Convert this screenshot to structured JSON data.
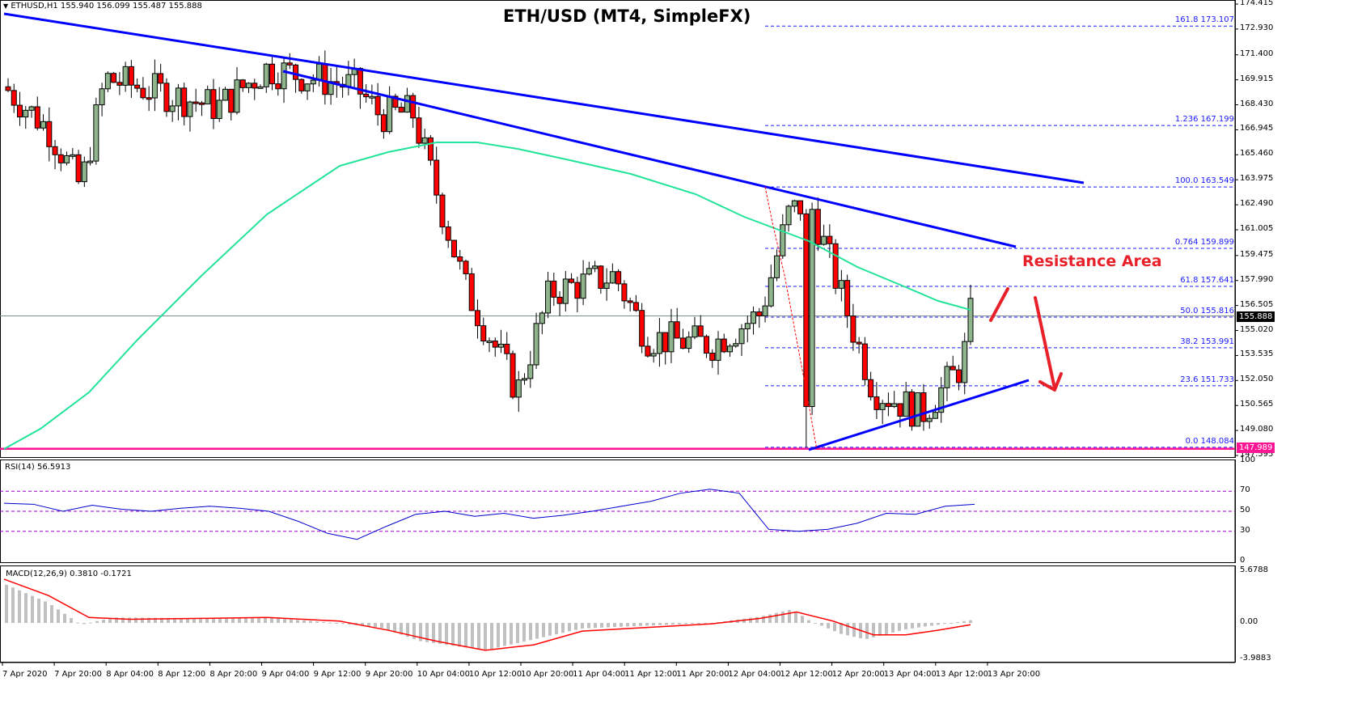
{
  "window": {
    "symbol_info": "ETHUSD,H1  155.940 156.099 155.487 155.888",
    "title": "ETH/USD (MT4, SimpleFX)"
  },
  "annotations": {
    "resistance_label": "Resistance Area"
  },
  "colors": {
    "bull_candle": "#8fb58c",
    "bear_candle": "#ff0000",
    "trendline": "#0000ff",
    "ma": "#22e39a",
    "support_line": "#ff1493",
    "fib": "#1a1aff",
    "rsi_line": "#0000cc",
    "rsi_levels": "#9900cc",
    "macd_hist": "#c0c0c0",
    "macd_signal": "#ff0000",
    "arrow": "#e8202a"
  },
  "price_axis": {
    "ticks": [
      "174.415",
      "172.930",
      "171.400",
      "169.915",
      "168.430",
      "166.945",
      "165.460",
      "163.975",
      "162.490",
      "161.005",
      "159.475",
      "157.990",
      "156.505",
      "155.020",
      "153.535",
      "152.050",
      "150.565",
      "149.080",
      "147.595"
    ],
    "current_price": "155.888",
    "support_price": "147.989"
  },
  "fibonacci": [
    {
      "level": "161.8",
      "price": "173.107"
    },
    {
      "level": "1.236",
      "price": "167.199"
    },
    {
      "level": "100.0",
      "price": "163.549"
    },
    {
      "level": "0.764",
      "price": "159.899"
    },
    {
      "level": "61.8",
      "price": "157.641"
    },
    {
      "level": "50.0",
      "price": "155.816"
    },
    {
      "level": "38.2",
      "price": "153.991"
    },
    {
      "level": "23.6",
      "price": "151.733"
    },
    {
      "level": "0.0",
      "price": "148.084"
    }
  ],
  "rsi": {
    "label": "RSI(14) 56.5913",
    "ticks": [
      "100",
      "70",
      "50",
      "30",
      "0"
    ]
  },
  "macd": {
    "label": "MACD(12,26,9) 0.3810 -0.1721",
    "ticks": [
      "5.6788",
      "0.00",
      "-3.9883"
    ]
  },
  "time_axis": {
    "labels": [
      "7 Apr 2020",
      "7 Apr 20:00",
      "8 Apr 04:00",
      "8 Apr 12:00",
      "8 Apr 20:00",
      "9 Apr 04:00",
      "9 Apr 12:00",
      "9 Apr 20:00",
      "10 Apr 04:00",
      "10 Apr 12:00",
      "10 Apr 20:00",
      "11 Apr 04:00",
      "11 Apr 12:00",
      "11 Apr 20:00",
      "12 Apr 04:00",
      "12 Apr 12:00",
      "12 Apr 20:00",
      "13 Apr 04:00",
      "13 Apr 12:00",
      "13 Apr 20:00"
    ]
  },
  "chart_data": {
    "type": "candlestick",
    "title": "ETH/USD (MT4, SimpleFX)",
    "symbol": "ETHUSD",
    "timeframe": "H1",
    "last_bar": {
      "open": 155.94,
      "high": 156.099,
      "low": 155.487,
      "close": 155.888
    },
    "xlabel": "",
    "ylabel": "",
    "ylim": [
      147.595,
      174.415
    ],
    "x_tick_labels": [
      "7 Apr 2020",
      "7 Apr 20:00",
      "8 Apr 04:00",
      "8 Apr 12:00",
      "8 Apr 20:00",
      "9 Apr 04:00",
      "9 Apr 12:00",
      "9 Apr 20:00",
      "10 Apr 04:00",
      "10 Apr 12:00",
      "10 Apr 20:00",
      "11 Apr 04:00",
      "11 Apr 12:00",
      "11 Apr 20:00",
      "12 Apr 04:00",
      "12 Apr 12:00",
      "12 Apr 20:00",
      "13 Apr 04:00",
      "13 Apr 12:00",
      "13 Apr 20:00"
    ],
    "approx_close_path": [
      {
        "t": "7 Apr 00:00",
        "close": 169.3
      },
      {
        "t": "7 Apr 12:00",
        "close": 167.0
      },
      {
        "t": "7 Apr 20:00",
        "close": 163.5
      },
      {
        "t": "8 Apr 04:00",
        "close": 170.0
      },
      {
        "t": "8 Apr 12:00",
        "close": 168.3
      },
      {
        "t": "8 Apr 20:00",
        "close": 170.6
      },
      {
        "t": "9 Apr 04:00",
        "close": 169.5
      },
      {
        "t": "9 Apr 12:00",
        "close": 167.8
      },
      {
        "t": "9 Apr 20:00",
        "close": 168.0
      },
      {
        "t": "10 Apr 04:00",
        "close": 157.6
      },
      {
        "t": "10 Apr 12:00",
        "close": 151.4
      },
      {
        "t": "10 Apr 20:00",
        "close": 157.3
      },
      {
        "t": "11 Apr 04:00",
        "close": 158.3
      },
      {
        "t": "11 Apr 12:00",
        "close": 154.6
      },
      {
        "t": "11 Apr 20:00",
        "close": 154.2
      },
      {
        "t": "12 Apr 04:00",
        "close": 156.0
      },
      {
        "t": "12 Apr 12:00",
        "close": 161.9
      },
      {
        "t": "12 Apr 16:00",
        "close": 162.8
      },
      {
        "t": "12 Apr 20:00",
        "close": 151.5
      },
      {
        "t": "13 Apr 04:00",
        "close": 150.1
      },
      {
        "t": "13 Apr 12:00",
        "close": 153.0
      },
      {
        "t": "13 Apr 20:00",
        "close": 155.9
      }
    ],
    "overlays": {
      "moving_average_green": "starts ~148 on 7 Apr, peaks ~166.2 around 10 Apr 12:00, declines to ~156.1 at 13 Apr 20:00",
      "trendline_upper": {
        "from": {
          "t": "7 Apr 00:00",
          "price": 173.8
        },
        "to": {
          "t": "14 Apr",
          "price": 164.1
        }
      },
      "trendline_mid": {
        "from": {
          "t": "9 Apr 00:00",
          "price": 170.2
        },
        "to": {
          "t": "14 Apr",
          "price": 159.9
        }
      },
      "trendline_support": {
        "from": {
          "t": "12 Apr 22:00",
          "price": 148.1
        },
        "to": {
          "t": "14 Apr",
          "price": 152.1
        }
      },
      "horizontal_support": 147.989,
      "current_price_line": 155.888
    },
    "fibonacci_levels": [
      {
        "level": "161.8",
        "price": 173.107
      },
      {
        "level": "1.236",
        "price": 167.199
      },
      {
        "level": "100.0",
        "price": 163.549
      },
      {
        "level": "0.764",
        "price": 159.899
      },
      {
        "level": "61.8",
        "price": 157.641
      },
      {
        "level": "50.0",
        "price": 155.816
      },
      {
        "level": "38.2",
        "price": 153.991
      },
      {
        "level": "23.6",
        "price": 151.733
      },
      {
        "level": "0.0",
        "price": 148.084
      }
    ],
    "indicators": {
      "rsi": {
        "period": 14,
        "value": 56.5913,
        "levels": [
          70,
          50,
          30
        ],
        "range": [
          0,
          100
        ],
        "approx_path": [
          58,
          57,
          50,
          56,
          52,
          50,
          53,
          55,
          53,
          50,
          40,
          28,
          22,
          35,
          47,
          50,
          45,
          48,
          43,
          46,
          50,
          55,
          60,
          68,
          72,
          68,
          32,
          30,
          32,
          38,
          48,
          47,
          55,
          57
        ]
      },
      "macd": {
        "params": [
          12,
          26,
          9
        ],
        "main": 0.381,
        "signal": -0.1721,
        "range": [
          -3.9883,
          5.6788
        ],
        "notes": "histogram large positive at start, dips to about -3 near 10 Apr 12:00, positive ~+1.5 near 12 Apr 18:00, negative ~-1.9 near 13 Apr 06:00, near zero at end"
      }
    },
    "annotations": [
      {
        "text": "Resistance Area",
        "color": "#e8202a",
        "position": "right of price near 159.5"
      },
      {
        "type": "arrow",
        "direction": "up",
        "note": "red arrow near 155.8 to 157.9"
      },
      {
        "type": "arrow",
        "direction": "down",
        "note": "red arrow from 157.8 pointing down to ~152.5"
      }
    ]
  }
}
